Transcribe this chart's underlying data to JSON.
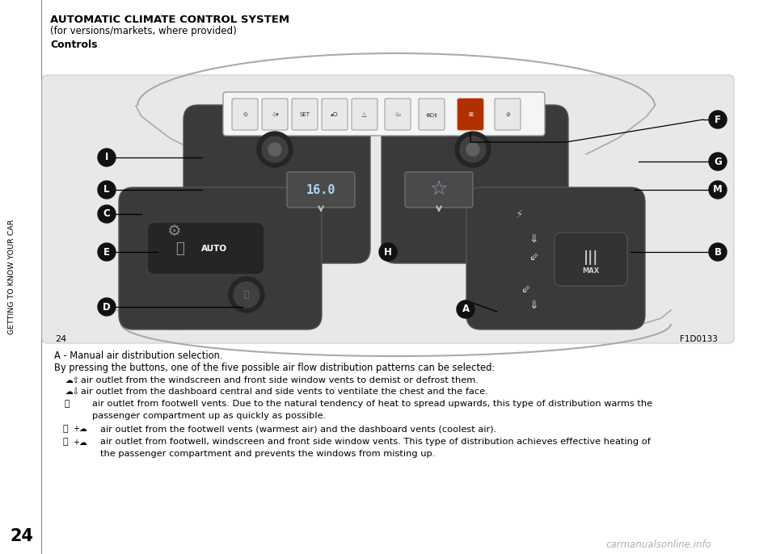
{
  "title": "AUTOMATIC CLIMATE CONTROL SYSTEM",
  "subtitle": "(for versions/markets, where provided)",
  "section": "Controls",
  "bg_color": "#ffffff",
  "sidebar_text": "GETTING TO KNOW YOUR CAR",
  "page_number_top": "24",
  "page_number_bottom": "24",
  "figure_id": "F1D0133",
  "body_line1": "A - Manual air distribution selection.",
  "body_line2": "By pressing the buttons, one of the five possible air flow distribution patterns can be selected:",
  "bullet1": "air outlet from the windscreen and front side window vents to demist or defrost them.",
  "bullet2": "air outlet from the dashboard central and side vents to ventilate the chest and the face.",
  "bullet3a": "air outlet from footwell vents. Due to the natural tendency of heat to spread upwards, this type of distribution warms the",
  "bullet3b": "passenger compartment up as quickly as possible.",
  "bullet4": "air outlet from the footwell vents (warmest air) and the dashboard vents (coolest air).",
  "bullet5a": "air outlet from footwell, windscreen and front side window vents. This type of distribution achieves effective heating of",
  "bullet5b": "the passenger compartment and prevents the windows from misting up.",
  "watermark": "carmanualsonline.info",
  "diag_bg": "#e8e8e8",
  "cluster_dark": "#3a3a3a",
  "cluster_edge": "#555555",
  "knob_dark": "#252525",
  "knob_mid": "#404040",
  "knob_light": "#606060",
  "display_bg": "#4a4a4a",
  "temp_text_color": "#a8d8f0",
  "fan_color": "#8888cc",
  "line_color": "#222222",
  "label_circle_color": "#111111",
  "label_text_color": "#ffffff",
  "sidebar_line_color": "#888888",
  "strip_bg": "#f5f5f5",
  "strip_edge": "#999999",
  "btn_bg": "#e8e8e8",
  "btn_edge": "#888888",
  "btn_highlight_bg": "#b03000",
  "car_curve_color": "#aaaaaa"
}
